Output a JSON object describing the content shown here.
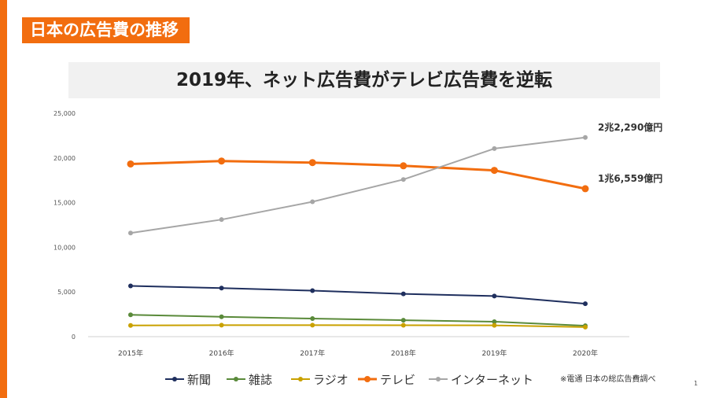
{
  "slide": {
    "section_title": "日本の広告費の推移",
    "headline": "2019年、ネット広告費がテレビ広告費を逆転",
    "source_note": "※電通 日本の総広告費調べ",
    "page_number": "1",
    "accent_color": "#f26d0f"
  },
  "chart_data": {
    "type": "line",
    "x": [
      "2015年",
      "2016年",
      "2017年",
      "2018年",
      "2019年",
      "2020年"
    ],
    "ylim": [
      0,
      25000
    ],
    "yticks": [
      0,
      5000,
      10000,
      15000,
      20000,
      25000
    ],
    "ytick_labels": [
      "0",
      "5,000",
      "10,000",
      "15,000",
      "20,000",
      "25,000"
    ],
    "grid": false,
    "legend_position": "bottom",
    "series": [
      {
        "name": "新聞",
        "color": "#1f2f5e",
        "values": [
          5679,
          5431,
          5147,
          4784,
          4547,
          3688
        ]
      },
      {
        "name": "雑誌",
        "color": "#5a8a3a",
        "values": [
          2443,
          2223,
          2023,
          1841,
          1675,
          1223
        ]
      },
      {
        "name": "ラジオ",
        "color": "#c9a100",
        "values": [
          1254,
          1285,
          1290,
          1278,
          1260,
          1066
        ]
      },
      {
        "name": "テレビ",
        "color": "#f26d0f",
        "values": [
          19323,
          19657,
          19478,
          19123,
          18612,
          16559
        ]
      },
      {
        "name": "インターネット",
        "color": "#a6a6a6",
        "values": [
          11594,
          13100,
          15094,
          17589,
          21048,
          22290
        ]
      }
    ],
    "annotations": [
      {
        "series": "インターネット",
        "text": "2兆2,290億円"
      },
      {
        "series": "テレビ",
        "text": "1兆6,559億円"
      }
    ]
  }
}
